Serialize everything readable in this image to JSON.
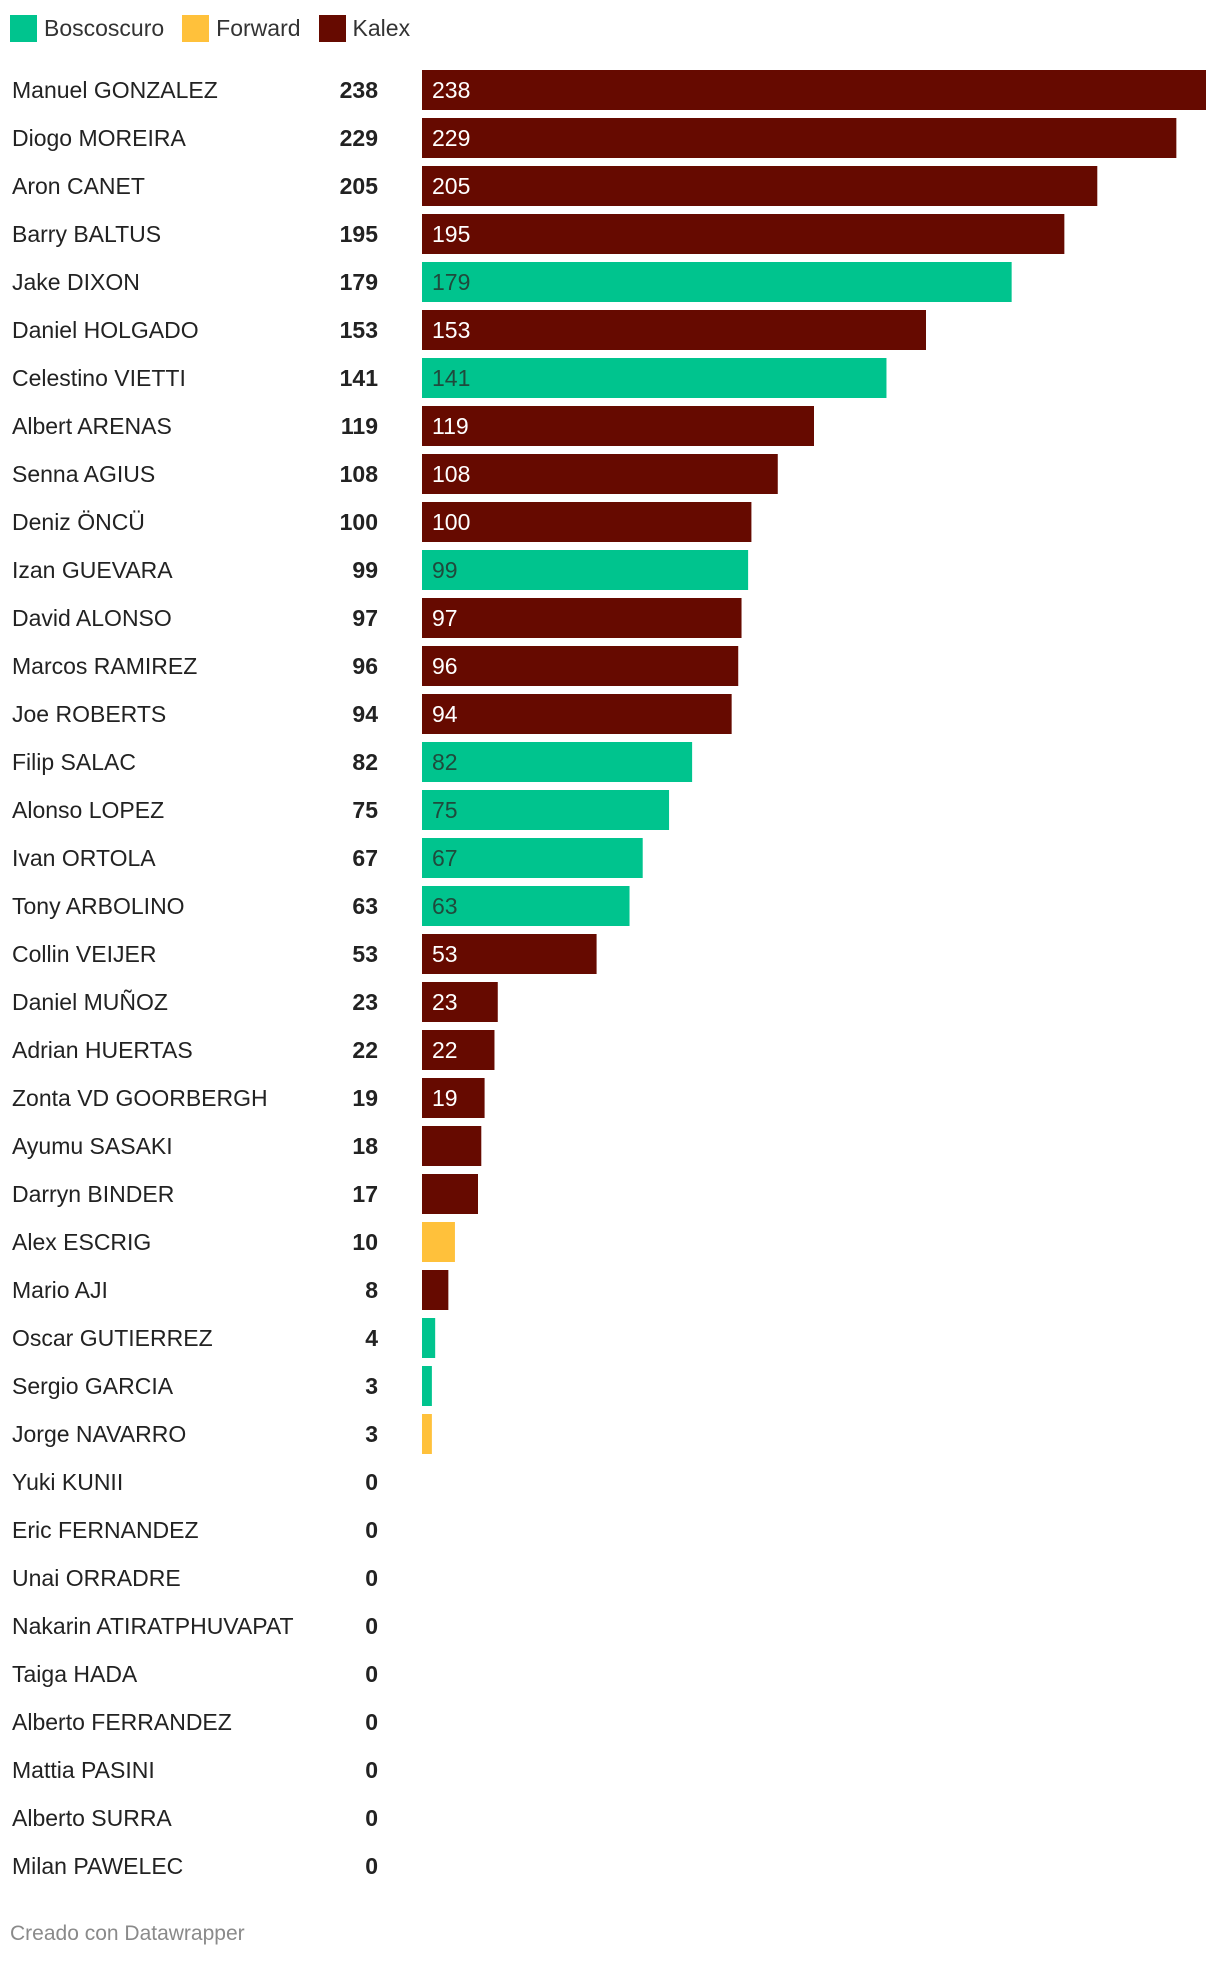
{
  "colors": {
    "Boscoscuro": "#00c48e",
    "Forward": "#ffc13b",
    "Kalex": "#660a00"
  },
  "legend": [
    {
      "name": "Boscoscuro",
      "color": "#00c48e"
    },
    {
      "name": "Forward",
      "color": "#ffc13b"
    },
    {
      "name": "Kalex",
      "color": "#660a00"
    }
  ],
  "footer": "Creado con Datawrapper",
  "chart_data": {
    "type": "bar",
    "orientation": "horizontal",
    "xlim": [
      0,
      238
    ],
    "grid": false,
    "legend_position": "top-left",
    "rows": [
      {
        "name": "Manuel GONZALEZ",
        "value": 238,
        "team": "Kalex"
      },
      {
        "name": "Diogo MOREIRA",
        "value": 229,
        "team": "Kalex"
      },
      {
        "name": "Aron CANET",
        "value": 205,
        "team": "Kalex"
      },
      {
        "name": "Barry BALTUS",
        "value": 195,
        "team": "Kalex"
      },
      {
        "name": "Jake DIXON",
        "value": 179,
        "team": "Boscoscuro"
      },
      {
        "name": "Daniel HOLGADO",
        "value": 153,
        "team": "Kalex"
      },
      {
        "name": "Celestino VIETTI",
        "value": 141,
        "team": "Boscoscuro"
      },
      {
        "name": "Albert ARENAS",
        "value": 119,
        "team": "Kalex"
      },
      {
        "name": "Senna AGIUS",
        "value": 108,
        "team": "Kalex"
      },
      {
        "name": "Deniz ÖNCÜ",
        "value": 100,
        "team": "Kalex"
      },
      {
        "name": "Izan GUEVARA",
        "value": 99,
        "team": "Boscoscuro"
      },
      {
        "name": "David ALONSO",
        "value": 97,
        "team": "Kalex"
      },
      {
        "name": "Marcos RAMIREZ",
        "value": 96,
        "team": "Kalex"
      },
      {
        "name": "Joe ROBERTS",
        "value": 94,
        "team": "Kalex"
      },
      {
        "name": "Filip SALAC",
        "value": 82,
        "team": "Boscoscuro"
      },
      {
        "name": "Alonso LOPEZ",
        "value": 75,
        "team": "Boscoscuro"
      },
      {
        "name": "Ivan ORTOLA",
        "value": 67,
        "team": "Boscoscuro"
      },
      {
        "name": "Tony ARBOLINO",
        "value": 63,
        "team": "Boscoscuro"
      },
      {
        "name": "Collin VEIJER",
        "value": 53,
        "team": "Kalex"
      },
      {
        "name": "Daniel MUÑOZ",
        "value": 23,
        "team": "Kalex"
      },
      {
        "name": "Adrian HUERTAS",
        "value": 22,
        "team": "Kalex"
      },
      {
        "name": "Zonta VD GOORBERGH",
        "value": 19,
        "team": "Kalex"
      },
      {
        "name": "Ayumu SASAKI",
        "value": 18,
        "team": "Kalex"
      },
      {
        "name": "Darryn BINDER",
        "value": 17,
        "team": "Kalex"
      },
      {
        "name": "Alex ESCRIG",
        "value": 10,
        "team": "Forward"
      },
      {
        "name": "Mario AJI",
        "value": 8,
        "team": "Kalex"
      },
      {
        "name": "Oscar GUTIERREZ",
        "value": 4,
        "team": "Boscoscuro"
      },
      {
        "name": "Sergio GARCIA",
        "value": 3,
        "team": "Boscoscuro"
      },
      {
        "name": "Jorge NAVARRO",
        "value": 3,
        "team": "Forward"
      },
      {
        "name": "Yuki KUNII",
        "value": 0,
        "team": "Kalex"
      },
      {
        "name": "Eric FERNANDEZ",
        "value": 0,
        "team": "Kalex"
      },
      {
        "name": "Unai ORRADRE",
        "value": 0,
        "team": "Kalex"
      },
      {
        "name": "Nakarin ATIRATPHUVAPAT",
        "value": 0,
        "team": "Kalex"
      },
      {
        "name": "Taiga HADA",
        "value": 0,
        "team": "Kalex"
      },
      {
        "name": "Alberto FERRANDEZ",
        "value": 0,
        "team": "Kalex"
      },
      {
        "name": "Mattia PASINI",
        "value": 0,
        "team": "Kalex"
      },
      {
        "name": "Alberto SURRA",
        "value": 0,
        "team": "Kalex"
      },
      {
        "name": "Milan PAWELEC",
        "value": 0,
        "team": "Kalex"
      }
    ]
  }
}
